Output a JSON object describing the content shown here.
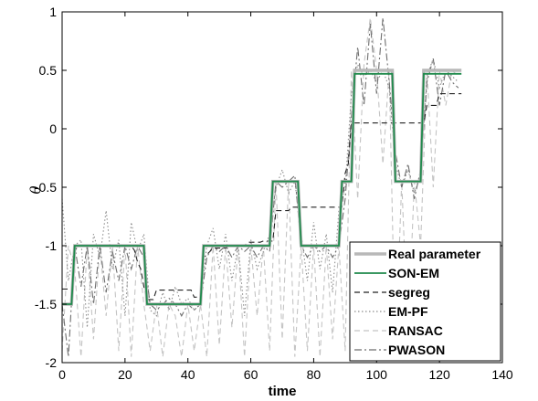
{
  "chart_data": {
    "type": "line",
    "title": "",
    "xlabel": "time",
    "ylabel": "θ",
    "xlim": [
      0,
      140
    ],
    "ylim": [
      -2,
      1
    ],
    "xticks": [
      "0",
      "20",
      "40",
      "60",
      "80",
      "100",
      "120",
      "140"
    ],
    "yticks": [
      "-2",
      "-1.5",
      "-1",
      "-0.5",
      "0",
      "0.5",
      "1"
    ],
    "grid": false,
    "legend_position": "bottom-right",
    "series": [
      {
        "name": "Real parameter",
        "color": "#b8b8b8",
        "style": "solid",
        "x": [
          0,
          3,
          4,
          26,
          27,
          44,
          45,
          66,
          67,
          75,
          76,
          88,
          89,
          92,
          93,
          105,
          106,
          114,
          115,
          127
        ],
        "y": [
          -1.5,
          -1.5,
          -1.0,
          -1.0,
          -1.5,
          -1.5,
          -1.0,
          -1.0,
          -0.45,
          -0.45,
          -1.0,
          -1.0,
          -0.45,
          -0.45,
          0.5,
          0.5,
          -0.45,
          -0.45,
          0.5,
          0.5
        ]
      },
      {
        "name": "SON-EM",
        "color": "#1f8a4c",
        "style": "solid",
        "x": [
          0,
          3,
          4,
          26,
          27,
          44,
          45,
          66,
          67,
          75,
          76,
          88,
          89,
          92,
          93,
          105,
          106,
          114,
          115,
          127
        ],
        "y": [
          -1.5,
          -1.5,
          -1.0,
          -1.0,
          -1.5,
          -1.5,
          -1.0,
          -1.0,
          -0.45,
          -0.45,
          -1.0,
          -1.0,
          -0.45,
          -0.45,
          0.47,
          0.47,
          -0.45,
          -0.45,
          0.47,
          0.47
        ]
      },
      {
        "name": "segreg",
        "color": "#222222",
        "style": "dashed",
        "x": [
          0,
          3,
          4,
          5,
          20,
          22,
          23,
          24,
          25,
          26,
          27,
          29,
          30,
          41,
          42,
          44,
          45,
          47,
          48,
          52,
          53,
          58,
          59,
          63,
          64,
          67,
          68,
          72,
          73,
          89,
          90,
          91,
          92,
          105,
          106,
          115,
          116,
          119,
          120,
          127
        ],
        "y": [
          -1.37,
          -1.37,
          -1.05,
          -1.0,
          -1.0,
          -1.0,
          -1.04,
          -1.14,
          -1.2,
          -1.35,
          -1.46,
          -1.46,
          -1.38,
          -1.38,
          -1.44,
          -1.44,
          -1.1,
          -1.05,
          -1.02,
          -1.02,
          -1.0,
          -1.0,
          -0.97,
          -0.97,
          -0.96,
          -0.96,
          -0.7,
          -0.7,
          -0.67,
          -0.67,
          -0.38,
          -0.3,
          0.05,
          0.05,
          0.05,
          0.05,
          0.2,
          0.2,
          0.3,
          0.3
        ]
      },
      {
        "name": "EM-PF",
        "color": "#8c8c8c",
        "style": "dotted",
        "x": [
          0,
          2,
          4,
          6,
          8,
          10,
          12,
          14,
          16,
          18,
          20,
          22,
          24,
          26,
          28,
          30,
          32,
          34,
          36,
          38,
          40,
          42,
          44,
          46,
          48,
          50,
          52,
          54,
          56,
          58,
          60,
          62,
          64,
          66,
          68,
          70,
          72,
          74,
          76,
          78,
          80,
          82,
          84,
          86,
          88,
          90,
          92,
          94,
          96,
          98,
          100,
          102,
          104,
          106,
          108,
          110,
          112,
          114,
          116,
          118,
          120,
          122,
          124,
          126
        ],
        "y": [
          -0.6,
          -1.3,
          -1.0,
          -0.95,
          -1.7,
          -0.9,
          -1.1,
          -0.7,
          -1.2,
          -0.95,
          -1.6,
          -0.8,
          -1.05,
          -0.9,
          -1.55,
          -1.6,
          -1.4,
          -1.55,
          -1.35,
          -1.5,
          -1.45,
          -1.55,
          -1.5,
          -1.0,
          -0.85,
          -1.2,
          -0.9,
          -1.3,
          -1.0,
          -1.6,
          -0.95,
          -1.2,
          -1.05,
          -0.9,
          -0.5,
          -0.35,
          -0.55,
          -0.45,
          -0.9,
          -1.3,
          -0.8,
          -1.2,
          -0.9,
          -1.4,
          -0.7,
          -0.5,
          0.3,
          0.55,
          0.45,
          0.5,
          0.4,
          0.5,
          0.35,
          -0.3,
          -0.5,
          -0.35,
          -0.55,
          -0.4,
          0.45,
          0.6,
          0.35,
          0.5,
          0.45,
          0.4
        ]
      },
      {
        "name": "RANSAC",
        "color": "#c4c4c4",
        "style": "dashed",
        "x": [
          0,
          2,
          4,
          6,
          8,
          10,
          12,
          14,
          16,
          18,
          20,
          22,
          24,
          26,
          28,
          30,
          32,
          34,
          36,
          38,
          40,
          42,
          44,
          46,
          48,
          50,
          52,
          54,
          56,
          58,
          60,
          62,
          64,
          66,
          68,
          70,
          72,
          74,
          76,
          78,
          80,
          82,
          84,
          86,
          88,
          90,
          92,
          94,
          96,
          98,
          100,
          102,
          104,
          106,
          108,
          110,
          112,
          114,
          116,
          118,
          120,
          122,
          124,
          126
        ],
        "y": [
          -1.9,
          -1.0,
          -1.2,
          -1.95,
          -1.0,
          -1.8,
          -1.0,
          -1.6,
          -1.0,
          -1.9,
          -1.0,
          -1.95,
          -1.0,
          -1.5,
          -1.9,
          -1.5,
          -1.95,
          -1.5,
          -1.6,
          -1.95,
          -1.5,
          -1.9,
          -1.5,
          -1.95,
          -1.0,
          -1.85,
          -1.0,
          -1.7,
          -1.0,
          -1.95,
          -1.0,
          -1.6,
          -1.0,
          -1.9,
          -0.45,
          -1.8,
          -0.45,
          -1.95,
          -1.0,
          -1.9,
          -1.0,
          -1.95,
          -1.0,
          -1.8,
          -1.0,
          -1.9,
          0.5,
          -0.6,
          0.55,
          0.95,
          0.5,
          -0.3,
          0.5,
          -1.95,
          -0.45,
          -1.8,
          -0.45,
          -1.0,
          0.5,
          -0.5,
          0.5,
          0.2,
          0.5,
          0.45
        ]
      },
      {
        "name": "PWASON",
        "color": "#6e6e6e",
        "style": "dashdot",
        "x": [
          0,
          2,
          4,
          6,
          8,
          10,
          12,
          14,
          16,
          18,
          20,
          22,
          24,
          26,
          28,
          30,
          32,
          34,
          36,
          38,
          40,
          42,
          44,
          46,
          48,
          50,
          52,
          54,
          56,
          58,
          60,
          62,
          64,
          66,
          68,
          70,
          72,
          74,
          76,
          78,
          80,
          82,
          84,
          86,
          88,
          90,
          92,
          94,
          96,
          98,
          100,
          102,
          104,
          106,
          108,
          110,
          112,
          114,
          116,
          118,
          120,
          122,
          124,
          126
        ],
        "y": [
          -1.5,
          -1.95,
          -1.0,
          -1.35,
          -1.0,
          -1.5,
          -1.0,
          -1.4,
          -1.05,
          -1.3,
          -1.0,
          -1.2,
          -1.0,
          -1.1,
          -1.5,
          -1.55,
          -1.5,
          -1.45,
          -1.5,
          -1.6,
          -1.5,
          -1.55,
          -1.5,
          -1.1,
          -1.0,
          -1.05,
          -1.0,
          -1.1,
          -1.0,
          -1.05,
          -1.0,
          -1.1,
          -1.0,
          -1.05,
          -0.45,
          -0.5,
          -0.45,
          -0.4,
          -1.0,
          -1.1,
          -1.0,
          -1.05,
          -1.0,
          -1.1,
          -1.0,
          -0.6,
          0.1,
          0.7,
          0.2,
          0.9,
          0.3,
          0.95,
          0.4,
          -0.2,
          -0.5,
          -0.3,
          -0.6,
          -0.35,
          0.4,
          0.6,
          0.2,
          0.5,
          0.4,
          0.35
        ]
      }
    ]
  }
}
